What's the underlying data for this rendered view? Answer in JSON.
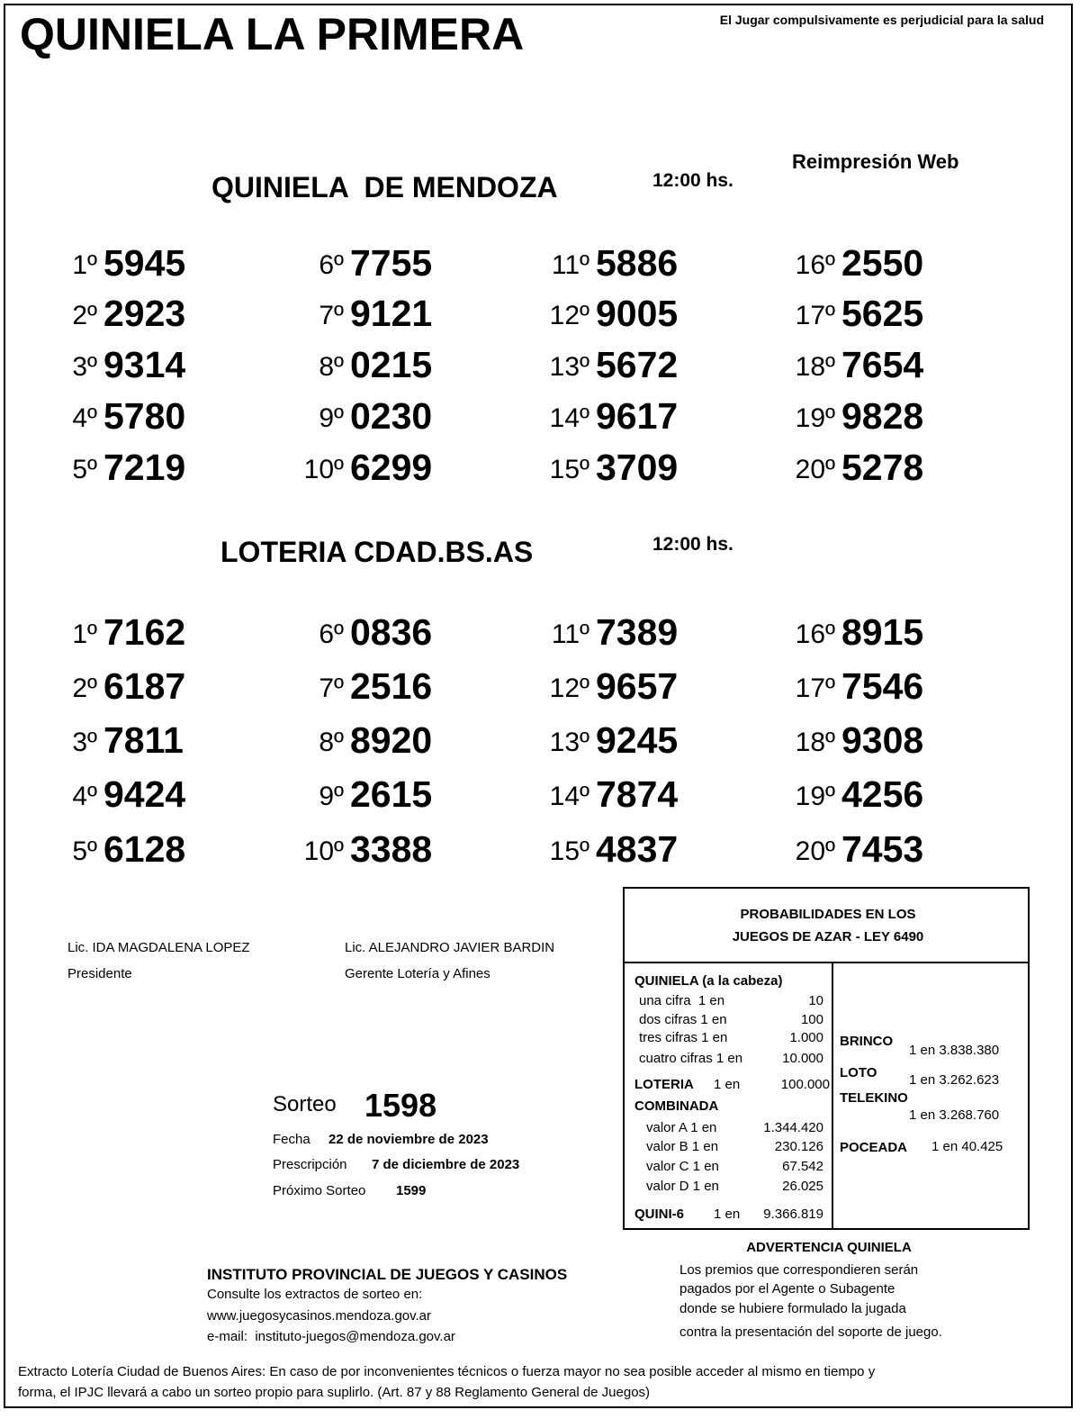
{
  "header": {
    "title": "QUINIELA LA PRIMERA",
    "warning": "El Jugar compulsivamente es perjudicial para la salud",
    "reprint": "Reimpresión Web"
  },
  "draws": [
    {
      "name": "QUINIELA  DE MENDOZA",
      "time": "12:00 hs.",
      "results": [
        {
          "position": "1º",
          "number": "5945"
        },
        {
          "position": "2º",
          "number": "2923"
        },
        {
          "position": "3º",
          "number": "9314"
        },
        {
          "position": "4º",
          "number": "5780"
        },
        {
          "position": "5º",
          "number": "7219"
        },
        {
          "position": "6º",
          "number": "7755"
        },
        {
          "position": "7º",
          "number": "9121"
        },
        {
          "position": "8º",
          "number": "0215"
        },
        {
          "position": "9º",
          "number": "0230"
        },
        {
          "position": "10º",
          "number": "6299"
        },
        {
          "position": "11º",
          "number": "5886"
        },
        {
          "position": "12º",
          "number": "9005"
        },
        {
          "position": "13º",
          "number": "5672"
        },
        {
          "position": "14º",
          "number": "9617"
        },
        {
          "position": "15º",
          "number": "3709"
        },
        {
          "position": "16º",
          "number": "2550"
        },
        {
          "position": "17º",
          "number": "5625"
        },
        {
          "position": "18º",
          "number": "7654"
        },
        {
          "position": "19º",
          "number": "9828"
        },
        {
          "position": "20º",
          "number": "5278"
        }
      ]
    },
    {
      "name": "LOTERIA CDAD.BS.AS",
      "time": "12:00 hs.",
      "results": [
        {
          "position": "1º",
          "number": "7162"
        },
        {
          "position": "2º",
          "number": "6187"
        },
        {
          "position": "3º",
          "number": "7811"
        },
        {
          "position": "4º",
          "number": "9424"
        },
        {
          "position": "5º",
          "number": "6128"
        },
        {
          "position": "6º",
          "number": "0836"
        },
        {
          "position": "7º",
          "number": "2516"
        },
        {
          "position": "8º",
          "number": "8920"
        },
        {
          "position": "9º",
          "number": "2615"
        },
        {
          "position": "10º",
          "number": "3388"
        },
        {
          "position": "11º",
          "number": "7389"
        },
        {
          "position": "12º",
          "number": "9657"
        },
        {
          "position": "13º",
          "number": "9245"
        },
        {
          "position": "14º",
          "number": "7874"
        },
        {
          "position": "15º",
          "number": "4837"
        },
        {
          "position": "16º",
          "number": "8915"
        },
        {
          "position": "17º",
          "number": "7546"
        },
        {
          "position": "18º",
          "number": "9308"
        },
        {
          "position": "19º",
          "number": "4256"
        },
        {
          "position": "20º",
          "number": "7453"
        }
      ]
    }
  ],
  "signatures": [
    {
      "name": "Lic. IDA MAGDALENA LOPEZ",
      "role": "Presidente"
    },
    {
      "name": "Lic. ALEJANDRO JAVIER BARDIN",
      "role": "Gerente Lotería y Afines"
    }
  ],
  "sorteo": {
    "label": "Sorteo",
    "number": "1598",
    "date_label": "Fecha",
    "date": "22 de noviembre de 2023",
    "prescription_label": "Prescripción",
    "prescription": "7 de diciembre de 2023",
    "next_label": "Próximo Sorteo",
    "next": "1599"
  },
  "probabilities": {
    "title": [
      "PROBABILIDADES EN LOS",
      "JUEGOS DE AZAR - LEY 6490"
    ],
    "quiniela": {
      "label": "QUINIELA (a la cabeza)",
      "rows": [
        {
          "label": "una cifra  1 en",
          "value": "10"
        },
        {
          "label": "dos cifras 1 en",
          "value": "100"
        },
        {
          "label": "tres cifras 1 en",
          "value": "1.000"
        },
        {
          "label": "cuatro cifras 1 en",
          "value": "10.000"
        }
      ]
    },
    "loteria": {
      "label": "LOTERIA",
      "odds": "1 en",
      "value": "100.000"
    },
    "combinada": {
      "label": "COMBINADA",
      "rows": [
        {
          "label": "valor A 1 en",
          "value": "1.344.420"
        },
        {
          "label": "valor B 1 en",
          "value": "230.126"
        },
        {
          "label": "valor C 1 en",
          "value": "67.542"
        },
        {
          "label": "valor D 1 en",
          "value": "26.025"
        }
      ]
    },
    "quini6": {
      "label": "QUINI-6",
      "odds": "1 en",
      "value": "9.366.819"
    },
    "others": [
      {
        "label": "BRINCO",
        "value": "1 en 3.838.380"
      },
      {
        "label": "LOTO",
        "value": "1 en 3.262.623"
      },
      {
        "label": "TELEKINO",
        "value": "1 en 3.268.760"
      },
      {
        "label": "POCEADA",
        "value": "1 en 40.425"
      }
    ]
  },
  "advertencia": {
    "title": "ADVERTENCIA QUINIELA",
    "lines": [
      "Los premios que correspondieren serán",
      "pagados por el Agente o Subagente",
      "donde se hubiere formulado la jugada",
      "contra la presentación del soporte de juego."
    ]
  },
  "institute": {
    "title": "INSTITUTO PROVINCIAL DE JUEGOS Y CASINOS",
    "lines": [
      "Consulte los extractos de sorteo en:",
      "www.juegosycasinos.mendoza.gov.ar",
      "e-mail:  instituto-juegos@mendoza.gov.ar"
    ]
  },
  "footer": [
    "Extracto Lotería Ciudad de Buenos Aires: En caso de por inconvenientes técnicos o fuerza mayor no sea posible acceder al mismo en tiempo y",
    "forma, el IPJC llevará a cabo un sorteo propio para suplirlo. (Art. 87 y 88 Reglamento General de Juegos)"
  ]
}
